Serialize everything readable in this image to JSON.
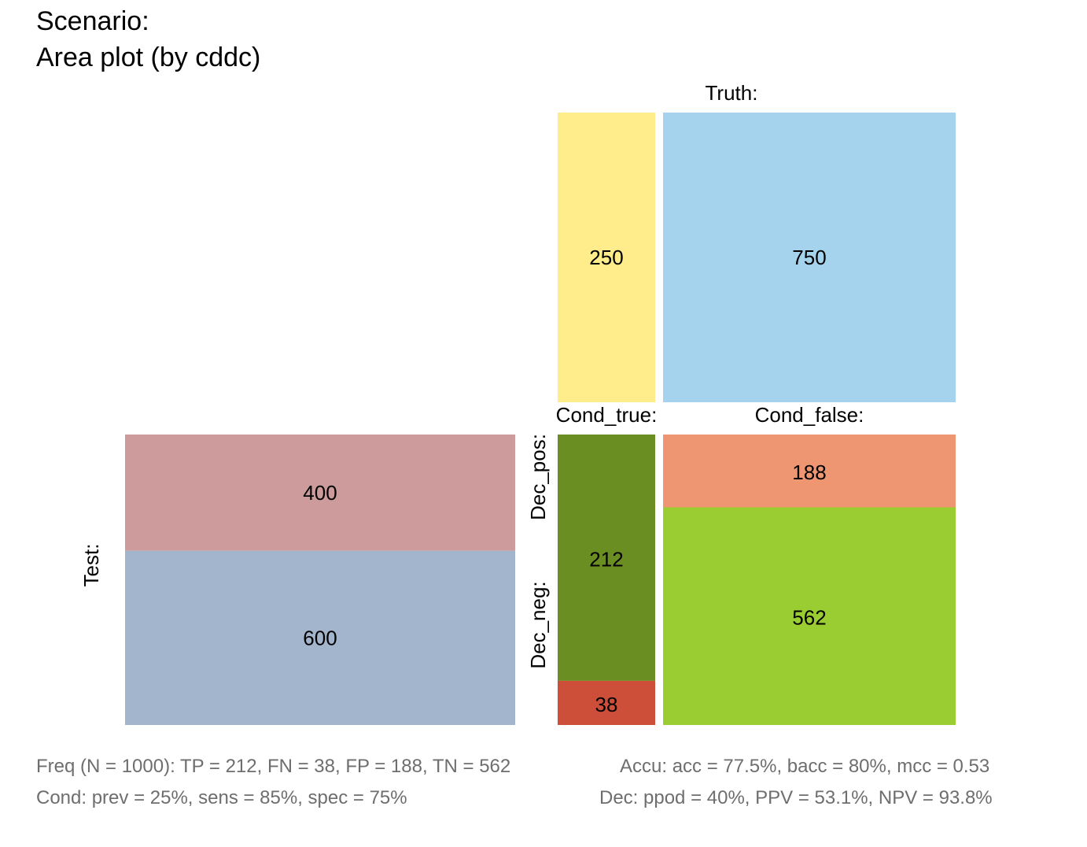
{
  "header": {
    "title": "Scenario:",
    "subtitle": "Area plot (by cddc)"
  },
  "chart_data": {
    "type": "area",
    "population": 1000,
    "truth": {
      "label": "Truth:",
      "cells": [
        {
          "key": "cond_true",
          "label": "Cond_true:",
          "value": 250,
          "color": "#FFEC8B"
        },
        {
          "key": "cond_false",
          "label": "Cond_false:",
          "value": 750,
          "color": "#A5D3EE"
        }
      ]
    },
    "test": {
      "label": "Test:",
      "cells": [
        {
          "key": "dec_pos",
          "value": 400,
          "color": "#CD9B9B"
        },
        {
          "key": "dec_neg",
          "value": 600,
          "color": "#A2B5CD"
        }
      ]
    },
    "quadrants": {
      "row_labels": [
        "Dec_pos:",
        "Dec_neg:"
      ],
      "columns": [
        {
          "key": "cond_true",
          "cells": [
            {
              "key": "TP",
              "value": 212,
              "color": "#6B8E23"
            },
            {
              "key": "FN",
              "value": 38,
              "color": "#CD4F39"
            }
          ]
        },
        {
          "key": "cond_false",
          "cells": [
            {
              "key": "FP",
              "value": 188,
              "color": "#EE9572"
            },
            {
              "key": "TN",
              "value": 562,
              "color": "#9ACD32"
            }
          ]
        }
      ]
    }
  },
  "footer": {
    "freq": "Freq (N = 1000):  TP = 212, FN = 38, FP = 188, TN = 562",
    "accu": "Accu:  acc = 77.5%, bacc = 80%, mcc = 0.53",
    "cond": "Cond:  prev = 25%, sens = 85%, spec = 75%",
    "dec": "Dec:  ppod = 40%, PPV = 53.1%, NPV = 93.8%"
  }
}
